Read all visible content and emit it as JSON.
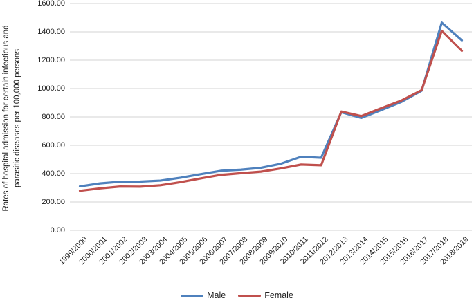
{
  "chart_data": {
    "type": "line",
    "title": "",
    "ylabel": "Rates of hospital admission for certain infectious and parasitic diseases per 100,000 persons",
    "ylabel_lines": [
      "Rates of hospital admission for certain infectious and",
      "parasitic diseases per 100,000 persons"
    ],
    "categories": [
      "1999/2000",
      "2000/2001",
      "2001/2002",
      "2002/2003",
      "2003/2004",
      "2004/2005",
      "2005/2006",
      "2006/2007",
      "2007/2008",
      "2008/2009",
      "2009/2010",
      "2010/2011",
      "2011/2012",
      "2012/2013",
      "2013/2014",
      "2014/2015",
      "2015/2016",
      "2016/2017",
      "2017/2018",
      "2018/2019"
    ],
    "series": [
      {
        "name": "Male",
        "color": "#4F81BD",
        "values": [
          310,
          331,
          343,
          344,
          351,
          371,
          396,
          420,
          428,
          441,
          470,
          519,
          512,
          833,
          793,
          849,
          906,
          985,
          1465,
          1340
        ]
      },
      {
        "name": "Female",
        "color": "#C0504D",
        "values": [
          279,
          296,
          309,
          308,
          318,
          340,
          366,
          391,
          403,
          414,
          437,
          464,
          459,
          838,
          806,
          862,
          916,
          989,
          1407,
          1266
        ]
      }
    ],
    "ylim": [
      0,
      1600
    ],
    "ytick_step": 200,
    "ytick_format_decimals": 2,
    "grid": true,
    "legend_position": "bottom",
    "x_labels_rotation_deg": -45
  },
  "colors": {
    "gridline": "#DCDCDC",
    "text": "#1F1F1F",
    "background": "#FFFFFF"
  }
}
